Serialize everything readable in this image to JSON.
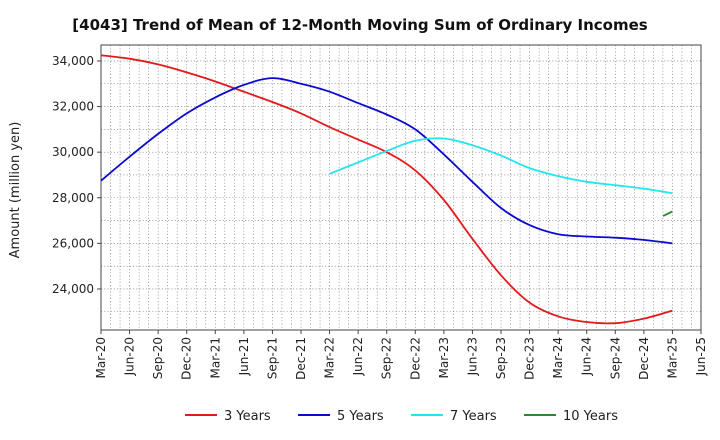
{
  "chart_data": {
    "type": "line",
    "title": "[4043]  Trend of Mean of 12-Month Moving Sum of Ordinary Incomes",
    "xlabel": "",
    "ylabel": "Amount (million yen)",
    "ylim": [
      22200,
      34700
    ],
    "yticks": [
      24000,
      26000,
      28000,
      30000,
      32000,
      34000
    ],
    "ytick_labels": [
      "24,000",
      "26,000",
      "28,000",
      "30,000",
      "32,000",
      "34,000"
    ],
    "categories": [
      "Mar-20",
      "Jun-20",
      "Sep-20",
      "Dec-20",
      "Mar-21",
      "Jun-21",
      "Sep-21",
      "Dec-21",
      "Mar-22",
      "Jun-22",
      "Sep-22",
      "Dec-22",
      "Mar-23",
      "Jun-23",
      "Sep-23",
      "Dec-23",
      "Mar-24",
      "Jun-24",
      "Sep-24",
      "Dec-24",
      "Mar-25",
      "Jun-25"
    ],
    "grid": true,
    "legend_position": "bottom",
    "series": [
      {
        "name": "3 Years",
        "color": "#e31a1c",
        "values": [
          34250,
          34100,
          33850,
          33500,
          33100,
          32650,
          32200,
          31700,
          31100,
          30550,
          30000,
          29200,
          27900,
          26200,
          24600,
          23400,
          22800,
          22550,
          22500,
          22700,
          23050,
          null
        ]
      },
      {
        "name": "5 Years",
        "color": "#0a0ad0",
        "values": [
          28750,
          29800,
          30800,
          31700,
          32400,
          32950,
          33250,
          33000,
          32650,
          32150,
          31650,
          31000,
          29900,
          28700,
          27550,
          26800,
          26400,
          26300,
          26250,
          26150,
          26000,
          null
        ]
      },
      {
        "name": "7 Years",
        "color": "#22e5ee",
        "values": [
          null,
          null,
          null,
          null,
          null,
          null,
          null,
          null,
          29050,
          29550,
          30050,
          30500,
          30600,
          30300,
          29850,
          29300,
          28950,
          28700,
          28550,
          28400,
          28200,
          null
        ]
      },
      {
        "name": "10 Years",
        "color": "#2a8a2a",
        "values": [
          null,
          null,
          null,
          null,
          null,
          null,
          null,
          null,
          null,
          null,
          null,
          null,
          null,
          null,
          null,
          null,
          null,
          null,
          null,
          null,
          27300,
          null
        ],
        "segment_start": 27200,
        "segment_end": 27400
      }
    ]
  }
}
